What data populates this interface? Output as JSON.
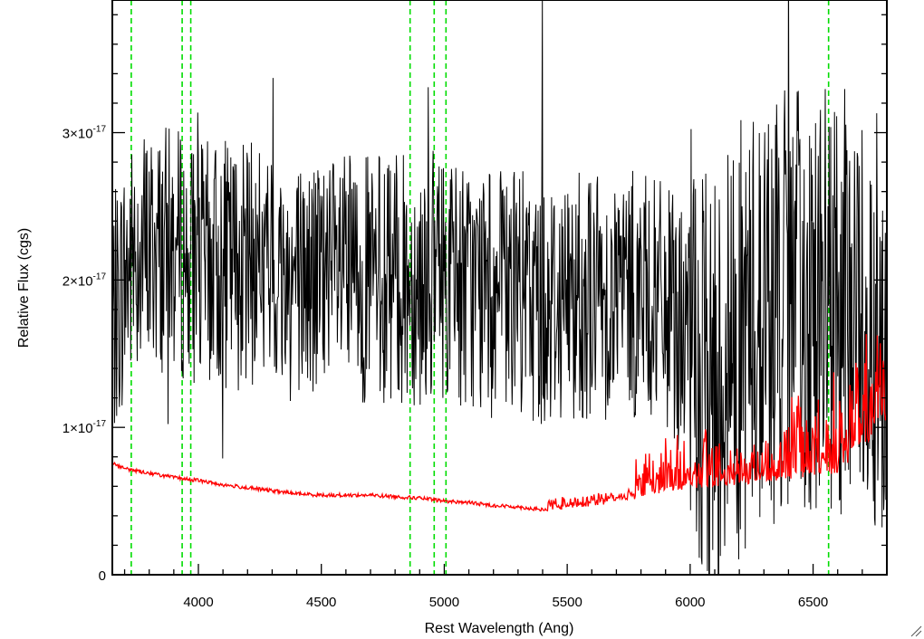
{
  "chart_data": {
    "type": "line",
    "xlabel": "Rest Wavelength (Ang)",
    "ylabel": "Relative Flux (cgs)",
    "xlim": [
      3650,
      6800
    ],
    "ylim": [
      0,
      3.9e-17
    ],
    "x_ticks": [
      4000,
      4500,
      5000,
      5500,
      6000,
      6500
    ],
    "x_tick_labels": [
      "4000",
      "4500",
      "5000",
      "5500",
      "6000",
      "6500"
    ],
    "y_ticks": [
      {
        "value": 0,
        "mantissa": "0",
        "exponent": ""
      },
      {
        "value": 1e-17,
        "mantissa": "1×10",
        "exponent": "-17"
      },
      {
        "value": 2e-17,
        "mantissa": "2×10",
        "exponent": "-17"
      },
      {
        "value": 3e-17,
        "mantissa": "3×10",
        "exponent": "-17"
      }
    ],
    "reference_lines_x": [
      3727,
      3934,
      3969,
      4861,
      4959,
      5007,
      6563
    ],
    "series": [
      {
        "color": "#000000",
        "style": "noisy",
        "x": [
          3650,
          3700,
          3750,
          3800,
          3900,
          4000,
          4100,
          4200,
          4300,
          4400,
          4500,
          4600,
          4700,
          4800,
          4900,
          5000,
          5100,
          5200,
          5300,
          5400,
          5500,
          5600,
          5700,
          5800,
          5900,
          6000,
          6050,
          6100,
          6150,
          6200,
          6300,
          6400,
          6500,
          6600,
          6700,
          6800
        ],
        "values": [
          1.7e-17,
          2e-17,
          2.2e-17,
          2.2e-17,
          2.2e-17,
          2.1e-17,
          2.1e-17,
          2.1e-17,
          2.05e-17,
          2e-17,
          2e-17,
          2e-17,
          2e-17,
          2e-17,
          2e-17,
          2.05e-17,
          1.95e-17,
          1.9e-17,
          1.9e-17,
          1.85e-17,
          1.9e-17,
          1.9e-17,
          1.9e-17,
          1.9e-17,
          1.8e-17,
          1.6e-17,
          1.2e-17,
          1.3e-17,
          1.5e-17,
          1.6e-17,
          1.8e-17,
          1.8e-17,
          1.9e-17,
          1.8e-17,
          1.8e-17,
          1.7e-17
        ]
      },
      {
        "color": "#ff0000",
        "style": "template",
        "x": [
          3650,
          3700,
          3800,
          3900,
          4000,
          4100,
          4200,
          4300,
          4400,
          4500,
          4600,
          4700,
          4800,
          4900,
          5000,
          5100,
          5200,
          5300,
          5400,
          5500,
          5600,
          5700,
          5800,
          5900,
          6000,
          6100,
          6200,
          6300,
          6400,
          6500,
          6600,
          6700,
          6800
        ],
        "values": [
          7.6e-18,
          7.2e-18,
          6.9e-18,
          6.6e-18,
          6.4e-18,
          6.1e-18,
          5.9e-18,
          5.7e-18,
          5.5e-18,
          5.4e-18,
          5.4e-18,
          5.4e-18,
          5.3e-18,
          5.2e-18,
          5e-18,
          4.9e-18,
          4.7e-18,
          4.6e-18,
          4.4e-18,
          4.5e-18,
          4.7e-18,
          4.9e-18,
          5.3e-18,
          5.6e-18,
          5.8e-18,
          6e-18,
          6.1e-18,
          6.3e-18,
          6.5e-18,
          6.6e-18,
          6.9e-18,
          8.5e-18,
          1.05e-17
        ]
      }
    ]
  }
}
